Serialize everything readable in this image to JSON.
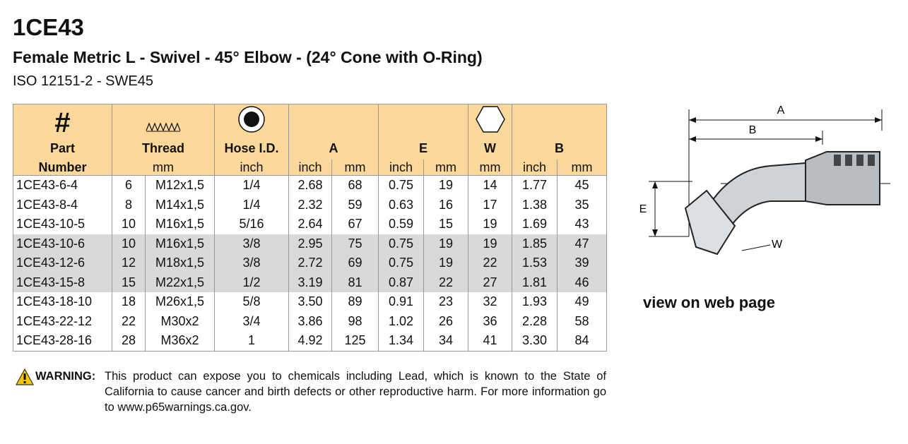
{
  "header": {
    "title": "1CE43",
    "subtitle": "Female Metric L - Swivel -  45° Elbow - (24° Cone with O-Ring)",
    "standard": "ISO 12151-2 - SWE45"
  },
  "table": {
    "head": {
      "hash": "#",
      "part": "Part",
      "number": "Number",
      "thread": "Thread",
      "thread_unit": "mm",
      "hose": "Hose I.D.",
      "hose_unit": "inch",
      "a": "A",
      "e": "E",
      "w": "W",
      "b": "B"
    },
    "units": [
      "inch",
      "mm",
      "inch",
      "mm",
      "mm",
      "inch",
      "mm"
    ],
    "rows": [
      [
        "1CE43-6-4",
        "6",
        "M12x1,5",
        "1/4",
        "2.68",
        "68",
        "0.75",
        "19",
        "14",
        "1.77",
        "45"
      ],
      [
        "1CE43-8-4",
        "8",
        "M14x1,5",
        "1/4",
        "2.32",
        "59",
        "0.63",
        "16",
        "17",
        "1.38",
        "35"
      ],
      [
        "1CE43-10-5",
        "10",
        "M16x1,5",
        "5/16",
        "2.64",
        "67",
        "0.59",
        "15",
        "19",
        "1.69",
        "43"
      ],
      [
        "1CE43-10-6",
        "10",
        "M16x1,5",
        "3/8",
        "2.95",
        "75",
        "0.75",
        "19",
        "19",
        "1.85",
        "47"
      ],
      [
        "1CE43-12-6",
        "12",
        "M18x1,5",
        "3/8",
        "2.72",
        "69",
        "0.75",
        "19",
        "22",
        "1.53",
        "39"
      ],
      [
        "1CE43-15-8",
        "15",
        "M22x1,5",
        "1/2",
        "3.19",
        "81",
        "0.87",
        "22",
        "27",
        "1.81",
        "46"
      ],
      [
        "1CE43-18-10",
        "18",
        "M26x1,5",
        "5/8",
        "3.50",
        "89",
        "0.91",
        "23",
        "32",
        "1.93",
        "49"
      ],
      [
        "1CE43-22-12",
        "22",
        "M30x2",
        "3/4",
        "3.86",
        "98",
        "1.02",
        "26",
        "36",
        "2.28",
        "58"
      ],
      [
        "1CE43-28-16",
        "28",
        "M36x2",
        "1",
        "4.92",
        "125",
        "1.34",
        "34",
        "41",
        "3.30",
        "84"
      ]
    ]
  },
  "diagram": {
    "a": "A",
    "b": "B",
    "e": "E",
    "w": "W"
  },
  "link": "view on web page",
  "warning": {
    "label": "WARNING:",
    "text": "This product can expose you to chemicals including Lead, which is known to the State of California to cause cancer and birth defects or other reproductive harm.  For more information go to www.p65warnings.ca.gov."
  }
}
